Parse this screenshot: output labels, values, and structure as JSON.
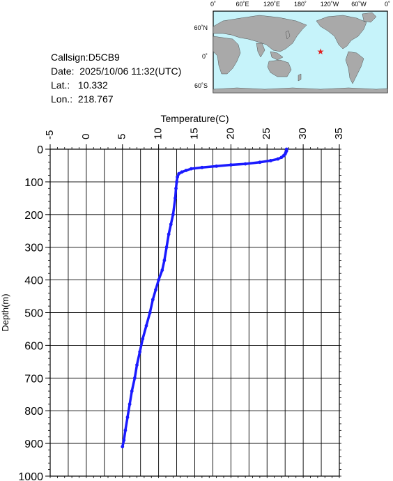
{
  "station": {
    "callsign_label": "Callsign:",
    "callsign": "D5CB9",
    "date_label": "Date:",
    "date": "2025/10/06 11:32(UTC)",
    "lat_label": "Lat.:",
    "lat": "10.332",
    "lon_label": "Lon.:",
    "lon": "218.767"
  },
  "map": {
    "top_lon_labels": [
      "0˚",
      "60˚E",
      "120˚E",
      "180˚",
      "120˚W",
      "60˚W",
      "0˚"
    ],
    "lat_labels": [
      "60˚N",
      "0˚",
      "60˚S"
    ],
    "ocean_color": "#c6f3fa",
    "land_color": "#a9a9a9",
    "marker_color": "#e02020",
    "marker_icon": "star-icon"
  },
  "chart_data": {
    "type": "line",
    "xlabel": "Temperature(C)",
    "ylabel": "Depth(m)",
    "xlim": [
      -5,
      35
    ],
    "ylim": [
      0,
      1000
    ],
    "y_inverted": true,
    "x_axis_position": "top",
    "x_ticks": [
      "-5",
      "0",
      "5",
      "10",
      "15",
      "20",
      "25",
      "30",
      "35"
    ],
    "y_ticks": [
      "0",
      "100",
      "200",
      "300",
      "400",
      "500",
      "600",
      "700",
      "800",
      "900",
      "1000"
    ],
    "grid": true,
    "series": [
      {
        "color": "#1a1aff",
        "x": [
          27.7,
          27.7,
          27.6,
          27.5,
          27.3,
          27.0,
          26.5,
          25.5,
          24.0,
          22.0,
          20.0,
          18.0,
          16.0,
          14.5,
          13.8,
          13.2,
          12.8,
          12.6,
          12.5,
          12.4,
          12.3,
          12.0,
          11.7,
          11.4,
          11.1,
          10.8,
          10.5,
          10.0,
          9.6,
          9.2,
          8.8,
          8.3,
          7.8,
          7.4,
          7.0,
          6.7,
          6.3,
          6.0,
          5.7,
          5.4,
          5.2,
          5.0
        ],
        "y": [
          0,
          5,
          10,
          15,
          20,
          25,
          30,
          35,
          40,
          45,
          48,
          52,
          56,
          60,
          65,
          70,
          75,
          85,
          100,
          120,
          150,
          200,
          230,
          260,
          300,
          340,
          370,
          400,
          430,
          460,
          500,
          540,
          580,
          620,
          660,
          700,
          740,
          780,
          820,
          860,
          890,
          910
        ]
      }
    ]
  }
}
